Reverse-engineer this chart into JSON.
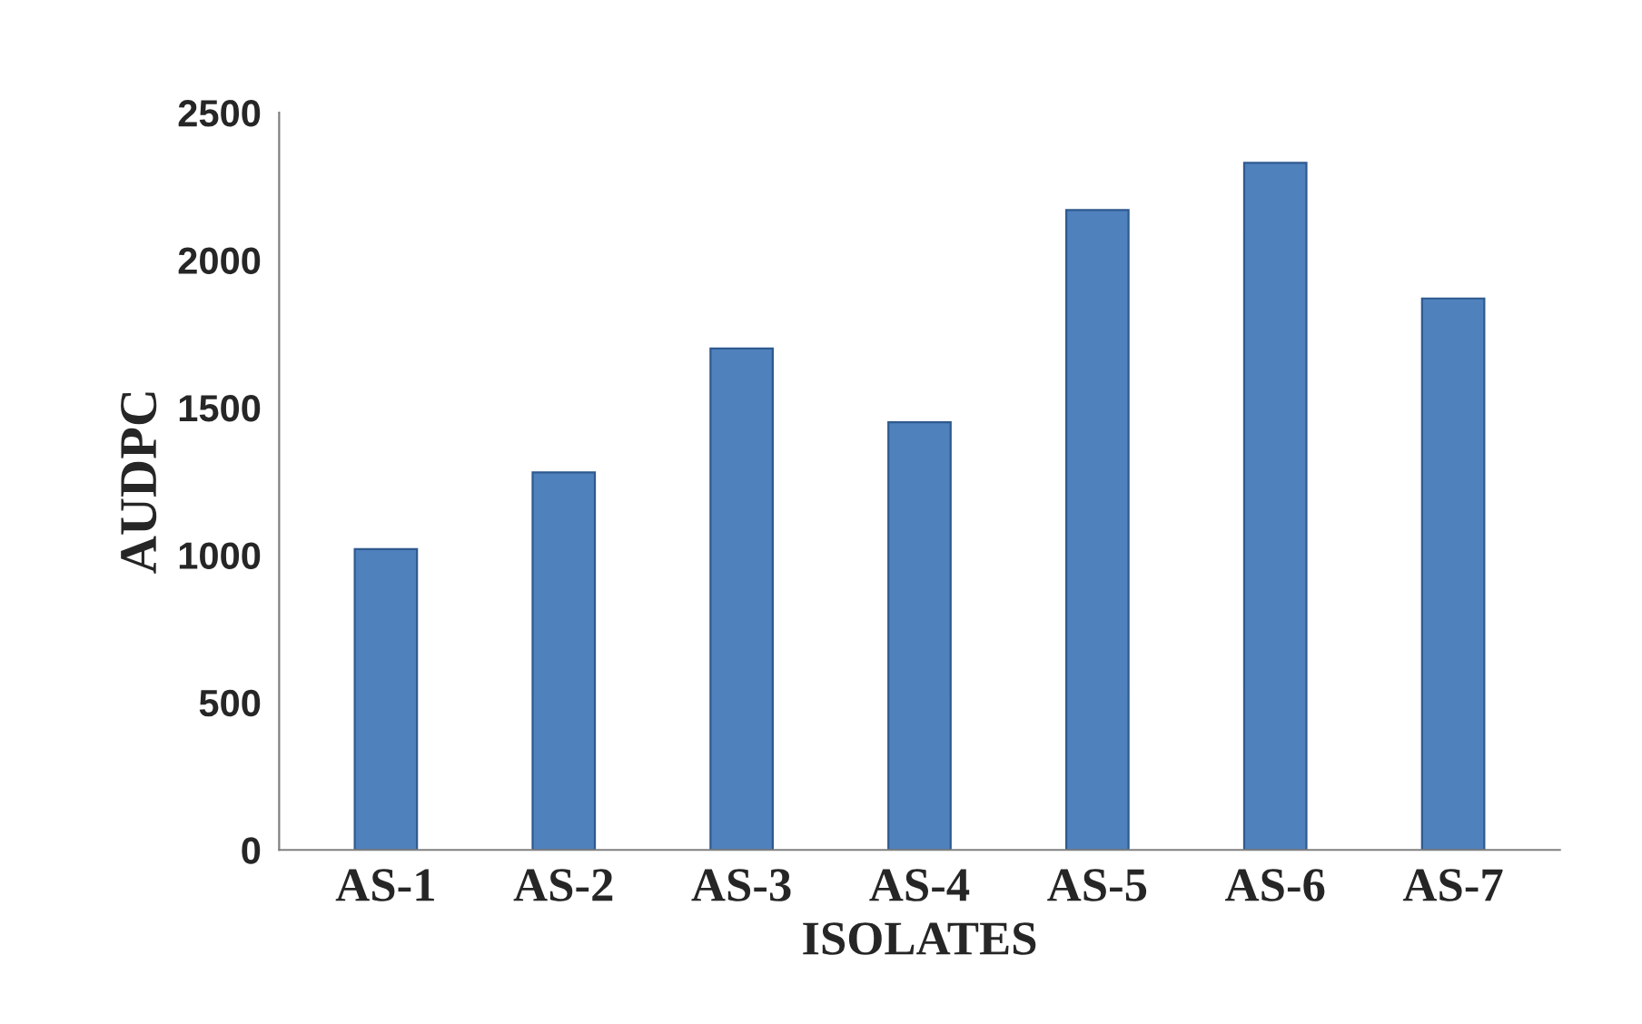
{
  "chart_data": {
    "type": "bar",
    "xlabel": "ISOLATES",
    "ylabel": "AUDPC",
    "categories": [
      "AS-1",
      "AS-2",
      "AS-3",
      "AS-4",
      "AS-5",
      "AS-6",
      "AS-7"
    ],
    "values": [
      1020,
      1280,
      1700,
      1450,
      2170,
      2330,
      1870
    ],
    "color": "#4f81bd",
    "ylim": [
      0,
      2500
    ],
    "yticks": [
      0,
      500,
      1000,
      1500,
      2000,
      2500
    ],
    "grid": false
  }
}
